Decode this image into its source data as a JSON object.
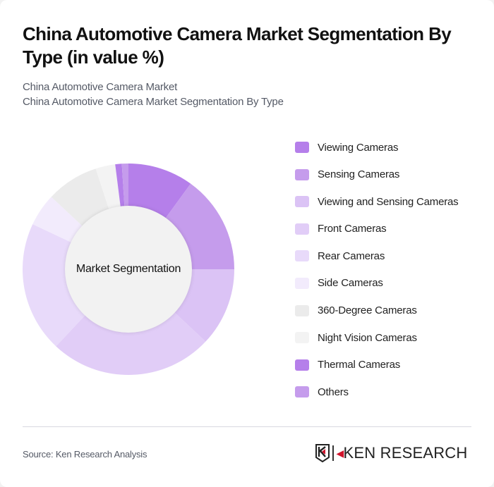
{
  "header": {
    "title": "China Automotive Camera Market Segmentation By Type (in value %)",
    "subtitle_line1": "China Automotive Camera Market",
    "subtitle_line2": "China Automotive Camera Market Segmentation By Type"
  },
  "center_label": "Market Segmentation",
  "legend": [
    {
      "label": "Viewing Cameras",
      "color": "#b57fea"
    },
    {
      "label": "Sensing Cameras",
      "color": "#c59cec"
    },
    {
      "label": "Viewing and Sensing Cameras",
      "color": "#dbc3f5"
    },
    {
      "label": "Front Cameras",
      "color": "#e1cdf7"
    },
    {
      "label": "Rear Cameras",
      "color": "#e8dafa"
    },
    {
      "label": "Side Cameras",
      "color": "#f2ebfc"
    },
    {
      "label": "360-Degree Cameras",
      "color": "#ebebeb"
    },
    {
      "label": "Night Vision Cameras",
      "color": "#f3f3f3"
    },
    {
      "label": "Thermal Cameras",
      "color": "#b57fea"
    },
    {
      "label": "Others",
      "color": "#c59cec"
    }
  ],
  "footer": {
    "source": "Source: Ken Research Analysis",
    "logo_text": "KEN RESEARCH"
  },
  "chart_data": {
    "type": "pie",
    "variant": "donut",
    "title": "China Automotive Camera Market Segmentation By Type (in value %)",
    "center_text": "Market Segmentation",
    "categories": [
      "Viewing Cameras",
      "Sensing Cameras",
      "Viewing and Sensing Cameras",
      "Front Cameras",
      "Rear Cameras",
      "Side Cameras",
      "360-Degree Cameras",
      "Night Vision Cameras",
      "Thermal Cameras",
      "Others"
    ],
    "values": [
      10,
      15,
      12,
      25,
      20,
      5,
      8,
      3,
      1,
      1
    ],
    "colors": [
      "#b57fea",
      "#c59cec",
      "#dbc3f5",
      "#e1cdf7",
      "#e8dafa",
      "#f2ebfc",
      "#ebebeb",
      "#f3f3f3",
      "#b57fea",
      "#c59cec"
    ],
    "legend_position": "right",
    "start_angle": "12 o'clock, clockwise"
  }
}
